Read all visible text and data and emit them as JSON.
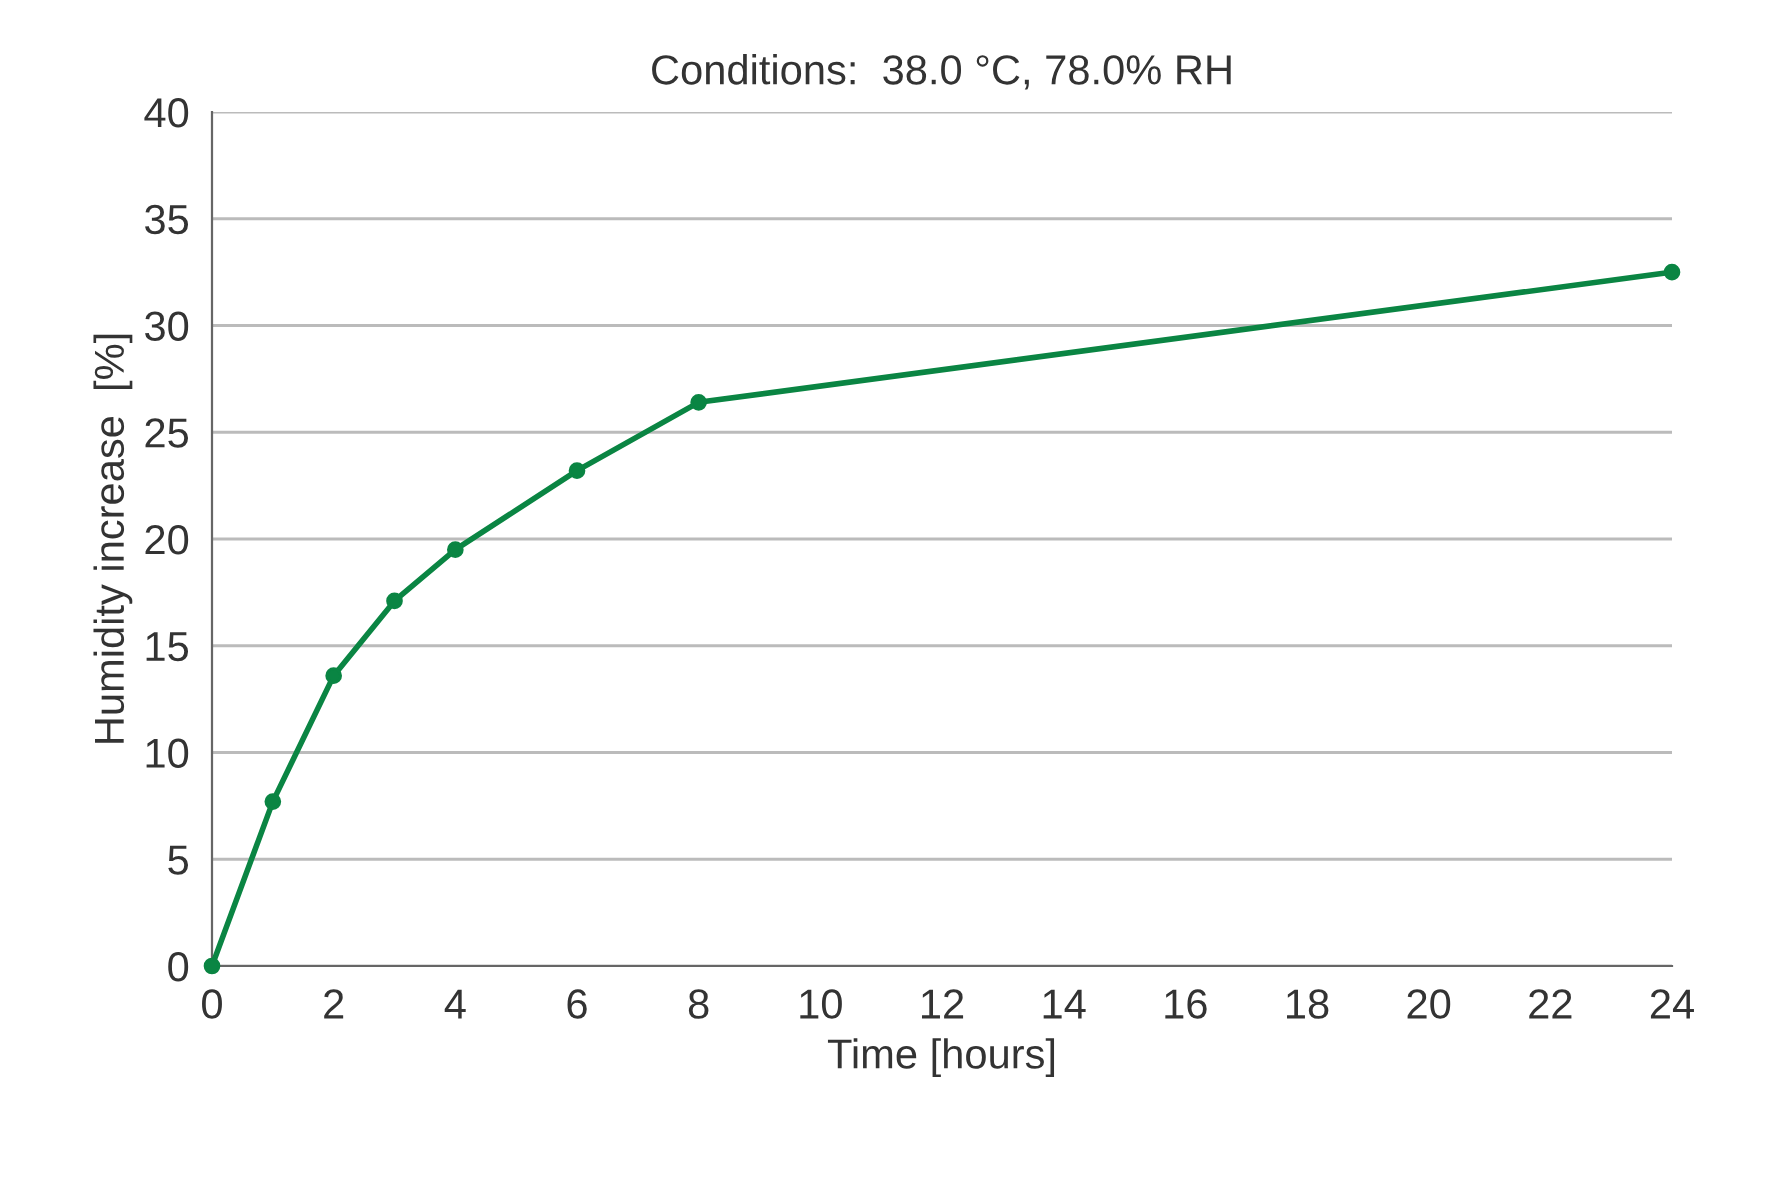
{
  "chart_data": {
    "type": "line",
    "title": "Conditions:  38.0 °C, 78.0% RH",
    "xlabel": "Time [hours]",
    "ylabel": "Humidity increase  [%]",
    "x": [
      0,
      1,
      2,
      3,
      4,
      6,
      8,
      24
    ],
    "series": [
      {
        "color": "#0a8543",
        "values": [
          0,
          7.7,
          13.6,
          17.1,
          19.5,
          23.2,
          26.4,
          32.5
        ]
      }
    ],
    "xlim": [
      0,
      24
    ],
    "xticks": [
      0,
      2,
      4,
      6,
      8,
      10,
      12,
      14,
      16,
      18,
      20,
      22,
      24
    ],
    "ylim": [
      0,
      40
    ],
    "yticks": [
      0,
      5,
      10,
      15,
      20,
      25,
      30,
      35,
      40
    ],
    "grid": "y",
    "marker": "circle",
    "line_style": "solid",
    "legend": false
  }
}
